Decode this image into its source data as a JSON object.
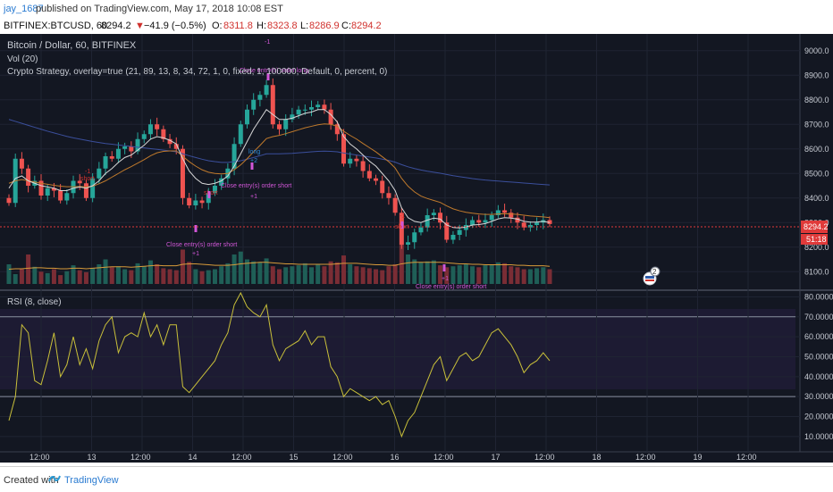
{
  "header": {
    "author": "jay_1687",
    "published": "published on TradingView.com, May 17, 2018 10:08 EST"
  },
  "symbol_bar": {
    "symbol": "BITFINEX:BTCUSD, 60",
    "last": "8294.2",
    "change": "−41.9 (−0.5%)",
    "o_label": "O:",
    "o": "8311.8",
    "h_label": "H:",
    "h": "8323.8",
    "l_label": "L:",
    "l": "8286.9",
    "c_label": "C:",
    "c": "8294.2"
  },
  "legends": {
    "main_title": "Bitcoin / Dollar, 60, BITFINEX",
    "vol": "Vol (20)",
    "strategy": "Crypto Strategy, overlay=true (21, 89, 13, 8, 34, 72, 1, 0, fixed, 1, 100000, Default, 0, percent, 0)",
    "rsi": "RSI (8, close)"
  },
  "colors": {
    "bg": "#131722",
    "rsi_bg": "#1d1b33",
    "up": "#26a69a",
    "down": "#ef5350",
    "ema_fast": "#d8d8d8",
    "ema_mid": "#c07a2c",
    "ema_slow": "#3b4f9c",
    "rsi_line": "#c9c03a",
    "signal": "#d257d8",
    "buy": "#2e8bd6",
    "price_tag": "#e03a3a"
  },
  "price_axis": [
    "9000.0",
    "8900.0",
    "8800.0",
    "8700.0",
    "8600.0",
    "8500.0",
    "8400.0",
    "8300.0",
    "8200.0",
    "8100.0"
  ],
  "price_tag": {
    "value": "8294.2",
    "countdown": "51:18"
  },
  "rsi_axis": [
    "80.0000",
    "70.0000",
    "60.0000",
    "50.0000",
    "40.0000",
    "30.0000",
    "20.0000",
    "10.0000"
  ],
  "time_axis": [
    "12:00",
    "13",
    "12:00",
    "14",
    "12:00",
    "15",
    "12:00",
    "16",
    "12:00",
    "17",
    "12:00",
    "18",
    "12:00",
    "19",
    "12:00"
  ],
  "annotations": [
    "-1",
    "Close entry(s) order long",
    "long",
    "+2",
    "Close entry(s) order short",
    "+1",
    "short",
    "-1",
    "short",
    "Close entry(s) order short",
    "+1",
    "-1",
    "short",
    "Close entry(s) order short",
    "+1",
    "Close entry(s) order short"
  ],
  "badge": "2",
  "footer": {
    "created": "Created with",
    "brand": "TradingView"
  },
  "chart_data": {
    "type": "candlestick",
    "title": "Bitcoin / Dollar, 60, BITFINEX",
    "symbol": "BITFINEX:BTCUSD",
    "interval": "60",
    "ylim": [
      8050,
      9050
    ],
    "rsi_ylim": [
      5,
      82
    ],
    "rsi_levels": [
      70,
      30
    ],
    "x_ticks": [
      "12:00",
      "13",
      "12:00",
      "14",
      "12:00",
      "15",
      "12:00",
      "16",
      "12:00",
      "17",
      "12:00",
      "18",
      "12:00",
      "19",
      "12:00"
    ],
    "close_series": [
      8380,
      8560,
      8520,
      8450,
      8470,
      8410,
      8440,
      8430,
      8390,
      8420,
      8470,
      8460,
      8400,
      8480,
      8520,
      8570,
      8560,
      8600,
      8610,
      8590,
      8640,
      8660,
      8700,
      8680,
      8640,
      8620,
      8600,
      8400,
      8370,
      8390,
      8380,
      8420,
      8450,
      8480,
      8520,
      8620,
      8700,
      8760,
      8800,
      8820,
      8860,
      8700,
      8680,
      8720,
      8740,
      8760,
      8760,
      8770,
      8780,
      8760,
      8700,
      8660,
      8540,
      8560,
      8550,
      8510,
      8480,
      8470,
      8420,
      8400,
      8340,
      8210,
      8220,
      8260,
      8280,
      8330,
      8340,
      8300,
      8230,
      8250,
      8270,
      8290,
      8310,
      8300,
      8310,
      8330,
      8350,
      8340,
      8320,
      8300,
      8280,
      8290,
      8300,
      8310,
      8294
    ],
    "ema_fast": [
      8440,
      8480,
      8490,
      8470,
      8460,
      8450,
      8445,
      8440,
      8430,
      8430,
      8440,
      8445,
      8440,
      8450,
      8470,
      8500,
      8520,
      8545,
      8565,
      8575,
      8595,
      8615,
      8640,
      8650,
      8645,
      8635,
      8620,
      8560,
      8510,
      8480,
      8460,
      8455,
      8460,
      8470,
      8490,
      8530,
      8580,
      8630,
      8680,
      8720,
      8760,
      8740,
      8720,
      8720,
      8725,
      8735,
      8745,
      8750,
      8760,
      8760,
      8740,
      8710,
      8650,
      8620,
      8600,
      8575,
      8550,
      8530,
      8500,
      8470,
      8430,
      8360,
      8320,
      8305,
      8300,
      8310,
      8318,
      8314,
      8290,
      8280,
      8278,
      8282,
      8290,
      8292,
      8296,
      8305,
      8315,
      8320,
      8318,
      8314,
      8305,
      8302,
      8302,
      8305,
      8300
    ],
    "ema_mid": [
      8460,
      8470,
      8475,
      8470,
      8465,
      8460,
      8456,
      8452,
      8448,
      8446,
      8446,
      8447,
      8445,
      8448,
      8458,
      8470,
      8485,
      8500,
      8515,
      8528,
      8542,
      8556,
      8572,
      8584,
      8590,
      8592,
      8592,
      8570,
      8548,
      8530,
      8515,
      8505,
      8500,
      8498,
      8500,
      8515,
      8535,
      8560,
      8588,
      8614,
      8642,
      8650,
      8655,
      8662,
      8670,
      8678,
      8686,
      8692,
      8698,
      8702,
      8700,
      8692,
      8672,
      8655,
      8640,
      8622,
      8605,
      8588,
      8568,
      8548,
      8522,
      8480,
      8448,
      8425,
      8408,
      8398,
      8390,
      8382,
      8368,
      8356,
      8348,
      8342,
      8338,
      8335,
      8333,
      8333,
      8335,
      8336,
      8335,
      8333,
      8330,
      8327,
      8325,
      8323,
      8320
    ],
    "ema_slow": [
      8720,
      8712,
      8704,
      8696,
      8688,
      8680,
      8672,
      8665,
      8658,
      8651,
      8645,
      8640,
      8635,
      8630,
      8626,
      8622,
      8619,
      8616,
      8613,
      8610,
      8607,
      8604,
      8601,
      8598,
      8595,
      8592,
      8588,
      8580,
      8572,
      8565,
      8558,
      8552,
      8548,
      8545,
      8545,
      8548,
      8552,
      8558,
      8565,
      8572,
      8580,
      8580,
      8580,
      8581,
      8582,
      8584,
      8586,
      8588,
      8590,
      8591,
      8590,
      8588,
      8583,
      8579,
      8575,
      8571,
      8567,
      8563,
      8558,
      8553,
      8546,
      8536,
      8527,
      8520,
      8514,
      8509,
      8505,
      8501,
      8496,
      8491,
      8487,
      8483,
      8479,
      8476,
      8473,
      8471,
      8469,
      8467,
      8465,
      8463,
      8461,
      8459,
      8457,
      8455,
      8453
    ],
    "rsi": [
      18,
      30,
      66,
      62,
      38,
      36,
      48,
      62,
      40,
      46,
      60,
      46,
      54,
      44,
      58,
      66,
      70,
      52,
      60,
      62,
      60,
      72,
      60,
      66,
      56,
      66,
      66,
      35,
      32,
      36,
      40,
      44,
      48,
      56,
      62,
      76,
      82,
      75,
      72,
      70,
      76,
      56,
      48,
      54,
      56,
      58,
      63,
      56,
      60,
      60,
      45,
      40,
      30,
      34,
      32,
      30,
      28,
      30,
      26,
      28,
      20,
      10,
      18,
      22,
      30,
      38,
      46,
      50,
      38,
      44,
      50,
      52,
      48,
      50,
      56,
      62,
      64,
      60,
      56,
      50,
      42,
      46,
      48,
      52,
      48
    ],
    "volume": [
      40,
      20,
      30,
      60,
      35,
      25,
      22,
      30,
      18,
      26,
      38,
      28,
      24,
      32,
      40,
      50,
      34,
      36,
      30,
      28,
      42,
      36,
      48,
      40,
      32,
      30,
      28,
      70,
      45,
      30,
      26,
      28,
      30,
      36,
      42,
      60,
      66,
      50,
      46,
      44,
      52,
      36,
      30,
      34,
      36,
      38,
      42,
      34,
      40,
      36,
      46,
      44,
      58,
      40,
      36,
      34,
      32,
      30,
      28,
      36,
      40,
      80,
      60,
      50,
      44,
      46,
      48,
      38,
      34,
      36,
      38,
      40,
      36,
      34,
      38,
      40,
      44,
      42,
      36,
      34,
      30,
      30,
      32,
      34,
      30
    ],
    "volume_ma": [
      30,
      31,
      31,
      32,
      33,
      33,
      32,
      32,
      31,
      31,
      32,
      32,
      31,
      32,
      33,
      34,
      35,
      35,
      35,
      34,
      35,
      36,
      37,
      38,
      37,
      37,
      37,
      40,
      41,
      41,
      40,
      39,
      38,
      38,
      38,
      39,
      41,
      42,
      43,
      44,
      44,
      43,
      42,
      41,
      41,
      40,
      40,
      40,
      40,
      40,
      40,
      41,
      42,
      42,
      42,
      41,
      40,
      39,
      39,
      38,
      38,
      41,
      43,
      44,
      44,
      44,
      44,
      44,
      43,
      42,
      41,
      41,
      40,
      40,
      39,
      39,
      39,
      39,
      39,
      38,
      38,
      37,
      37,
      37,
      36
    ]
  }
}
